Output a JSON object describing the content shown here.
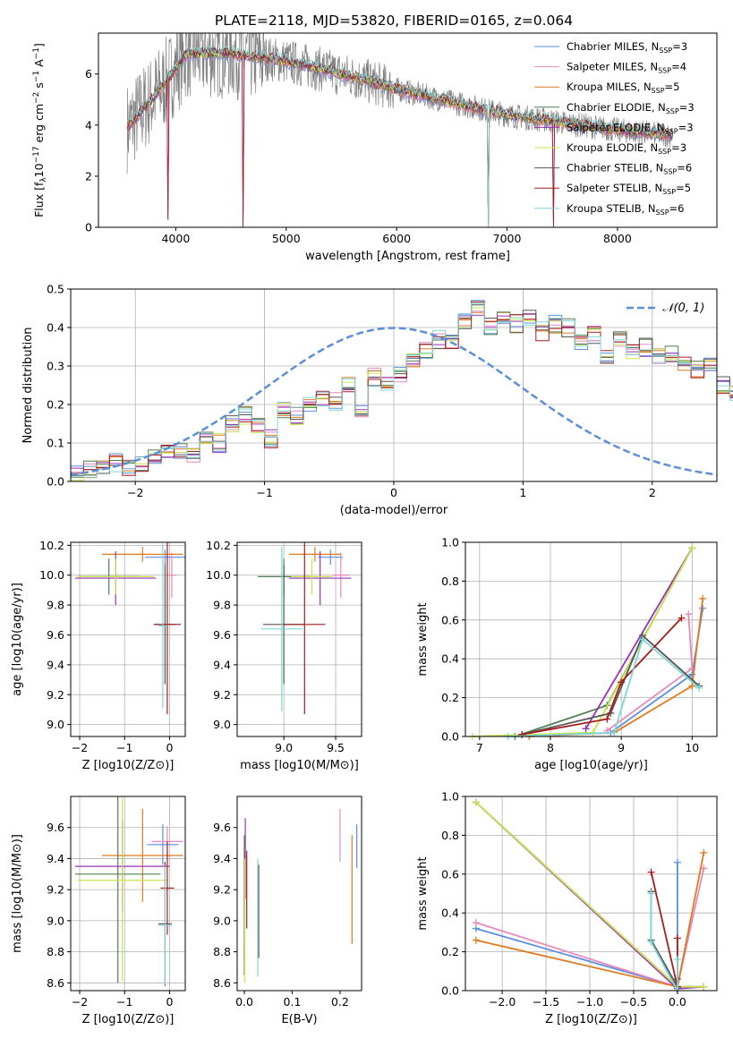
{
  "figure": {
    "title": "PLATE=2118, MJD=53820, FIBERID=0165, z=0.064"
  },
  "colors": {
    "Chabrier MILES": "#5a8ee0",
    "Salpeter MILES": "#e889bd",
    "Kroupa MILES": "#e07a1f",
    "Chabrier ELODIE": "#4f7f4f",
    "Salpeter ELODIE": "#9b30b8",
    "Kroupa ELODIE": "#c8e64a",
    "Chabrier STELIB": "#555555",
    "Salpeter STELIB": "#a81c1c",
    "Kroupa STELIB": "#7fd6d8",
    "data": "#808080",
    "gauss": "#5b8fd8"
  },
  "legend": {
    "entries": [
      {
        "label": "Chabrier MILES, N",
        "sub": "SSP",
        "suffix": "=3",
        "key": "Chabrier MILES"
      },
      {
        "label": "Salpeter MILES, N",
        "sub": "SSP",
        "suffix": "=4",
        "key": "Salpeter MILES"
      },
      {
        "label": "Kroupa MILES, N",
        "sub": "SSP",
        "suffix": "=5",
        "key": "Kroupa MILES"
      },
      {
        "label": "Chabrier ELODIE, N",
        "sub": "SSP",
        "suffix": "=3",
        "key": "Chabrier ELODIE"
      },
      {
        "label": "Salpeter ELODIE, N",
        "sub": "SSP",
        "suffix": "=3",
        "key": "Salpeter ELODIE"
      },
      {
        "label": "Kroupa ELODIE, N",
        "sub": "SSP",
        "suffix": "=3",
        "key": "Kroupa ELODIE"
      },
      {
        "label": "Chabrier STELIB, N",
        "sub": "SSP",
        "suffix": "=6",
        "key": "Chabrier STELIB"
      },
      {
        "label": "Salpeter STELIB, N",
        "sub": "SSP",
        "suffix": "=5",
        "key": "Salpeter STELIB"
      },
      {
        "label": "Kroupa STELIB, N",
        "sub": "SSP",
        "suffix": "=6",
        "key": "Kroupa STELIB"
      }
    ],
    "gauss_label": "𝒩(0, 1)"
  },
  "chart_data": [
    {
      "id": "spectrum",
      "type": "line",
      "xlabel": "wavelength [Angstrom, rest frame]",
      "ylabel_parts": [
        "Flux [f",
        "λ",
        "10",
        "−17",
        " erg cm",
        "−2",
        " s",
        "−1",
        " A",
        "−1",
        "]"
      ],
      "xlim": [
        3300,
        8900
      ],
      "ylim": [
        0,
        7.6
      ],
      "xticks": [
        4000,
        5000,
        6000,
        7000,
        8000
      ],
      "yticks": [
        0,
        2,
        4,
        6
      ],
      "continuum": {
        "x": [
          3560,
          3700,
          3900,
          4100,
          4500,
          5000,
          5500,
          6000,
          6500,
          7000,
          7500,
          8000,
          8500
        ],
        "y": [
          3.9,
          4.6,
          5.6,
          6.8,
          6.8,
          6.5,
          6.0,
          5.4,
          4.9,
          4.4,
          4.1,
          3.8,
          3.6
        ]
      },
      "model_dips": [
        [
          4610,
          0.0
        ],
        [
          3930,
          0.3
        ],
        [
          6830,
          0.0
        ],
        [
          7420,
          0.0
        ]
      ],
      "grid": false
    },
    {
      "id": "residuals",
      "type": "histogram",
      "xlabel": "(data-model)/error",
      "ylabel": "Normed distribution",
      "xlim": [
        -2.5,
        2.5
      ],
      "ylim": [
        0,
        0.5
      ],
      "xticks": [
        -2,
        -1,
        0,
        1,
        2
      ],
      "yticks": [
        0.0,
        0.1,
        0.2,
        0.3,
        0.4,
        0.5
      ],
      "bin_width": 0.1,
      "bin_start": -2.5,
      "base_heights": [
        0.02,
        0.03,
        0.04,
        0.05,
        0.04,
        0.05,
        0.06,
        0.07,
        0.08,
        0.07,
        0.11,
        0.1,
        0.15,
        0.17,
        0.14,
        0.11,
        0.18,
        0.17,
        0.2,
        0.22,
        0.21,
        0.25,
        0.19,
        0.27,
        0.26,
        0.28,
        0.31,
        0.34,
        0.37,
        0.36,
        0.42,
        0.45,
        0.4,
        0.43,
        0.41,
        0.42,
        0.39,
        0.41,
        0.4,
        0.36,
        0.38,
        0.33,
        0.37,
        0.34,
        0.35,
        0.32,
        0.33,
        0.31,
        0.29,
        0.3,
        0.25,
        0.23,
        0.2,
        0.19,
        0.17,
        0.15,
        0.13,
        0.11,
        0.1,
        0.09,
        0.08,
        0.07,
        0.06,
        0.05,
        0.05,
        0.04,
        0.03,
        0.03,
        0.03,
        0.02
      ],
      "grid": true
    },
    {
      "id": "age_vs_Z",
      "type": "scatter",
      "xlabel": "Z [log10(Z/Z⊙)]",
      "ylabel": "age  [log10(age/yr)]",
      "xlim": [
        -2.2,
        0.35
      ],
      "ylim": [
        8.92,
        10.22
      ],
      "xticks": [
        -2,
        -1,
        0
      ],
      "yticks": [
        9.0,
        9.2,
        9.4,
        9.6,
        9.8,
        10.0,
        10.2
      ],
      "points": [
        {
          "key": "Chabrier MILES",
          "x": -0.1,
          "y": 10.12,
          "xerr": 0.45,
          "yerr": 0.05
        },
        {
          "key": "Salpeter MILES",
          "x": 0.05,
          "y": 10.0,
          "xerr": 0.1,
          "yerr": 0.15
        },
        {
          "key": "Kroupa MILES",
          "x": -0.6,
          "y": 10.14,
          "xerr": 0.9,
          "yerr": 0.05
        },
        {
          "key": "Chabrier ELODIE",
          "x": -1.35,
          "y": 9.99,
          "xerr": 0.7,
          "yerr": 0.12
        },
        {
          "key": "Salpeter ELODIE",
          "x": -1.2,
          "y": 9.98,
          "xerr": 0.9,
          "yerr": 0.18
        },
        {
          "key": "Kroupa ELODIE",
          "x": -1.2,
          "y": 9.99,
          "xerr": 0.85,
          "yerr": 0.12
        },
        {
          "key": "Chabrier STELIB",
          "x": -0.1,
          "y": 9.67,
          "xerr": 0.25,
          "yerr": 0.4
        },
        {
          "key": "Salpeter STELIB",
          "x": -0.05,
          "y": 9.67,
          "xerr": 0.3,
          "yerr": 0.6
        },
        {
          "key": "Kroupa STELIB",
          "x": -0.15,
          "y": 9.66,
          "xerr": 0.1,
          "yerr": 0.55
        }
      ],
      "grid": true
    },
    {
      "id": "age_vs_mass",
      "type": "scatter",
      "xlabel": "mass [log10(M/M⊙)]",
      "ylabel": "",
      "xlim": [
        8.55,
        9.75
      ],
      "ylim": [
        8.92,
        10.22
      ],
      "xticks": [
        9.0,
        9.5
      ],
      "yticks": [
        9.0,
        9.2,
        9.4,
        9.6,
        9.8,
        10.0,
        10.2
      ],
      "points": [
        {
          "key": "Chabrier MILES",
          "x": 9.45,
          "y": 10.12,
          "xerr": 0.12,
          "yerr": 0.05
        },
        {
          "key": "Salpeter MILES",
          "x": 9.55,
          "y": 10.0,
          "xerr": 0.08,
          "yerr": 0.15
        },
        {
          "key": "Kroupa MILES",
          "x": 9.3,
          "y": 10.14,
          "xerr": 0.25,
          "yerr": 0.05
        },
        {
          "key": "Chabrier ELODIE",
          "x": 9.0,
          "y": 9.99,
          "xerr": 0.25,
          "yerr": 0.12
        },
        {
          "key": "Salpeter ELODIE",
          "x": 9.35,
          "y": 9.98,
          "xerr": 0.3,
          "yerr": 0.18
        },
        {
          "key": "Kroupa ELODIE",
          "x": 9.27,
          "y": 9.99,
          "xerr": 0.2,
          "yerr": 0.12
        },
        {
          "key": "Chabrier STELIB",
          "x": 9.0,
          "y": 9.67,
          "xerr": 0.2,
          "yerr": 0.4
        },
        {
          "key": "Salpeter STELIB",
          "x": 9.2,
          "y": 9.67,
          "xerr": 0.2,
          "yerr": 0.6
        },
        {
          "key": "Kroupa STELIB",
          "x": 8.98,
          "y": 9.64,
          "xerr": 0.2,
          "yerr": 0.55
        }
      ],
      "grid": true
    },
    {
      "id": "weight_vs_age",
      "type": "line",
      "xlabel": "age  [log10(age/yr)]",
      "ylabel": "mass weight",
      "xlim": [
        6.8,
        10.35
      ],
      "ylim": [
        0,
        1.0
      ],
      "xticks": [
        7,
        8,
        9,
        10
      ],
      "yticks": [
        0.0,
        0.2,
        0.4,
        0.6,
        0.8,
        1.0
      ],
      "series": [
        {
          "key": "Chabrier MILES",
          "x": [
            8.85,
            10.0,
            10.15
          ],
          "y": [
            0.02,
            0.32,
            0.66
          ]
        },
        {
          "key": "Salpeter MILES",
          "x": [
            8.8,
            10.0,
            9.95
          ],
          "y": [
            0.03,
            0.35,
            0.63
          ]
        },
        {
          "key": "Kroupa MILES",
          "x": [
            7.7,
            8.9,
            10.0,
            10.15
          ],
          "y": [
            0.0,
            0.02,
            0.26,
            0.71
          ]
        },
        {
          "key": "Chabrier ELODIE",
          "x": [
            7.5,
            8.8,
            10.0
          ],
          "y": [
            0.0,
            0.16,
            0.97
          ]
        },
        {
          "key": "Salpeter ELODIE",
          "x": [
            8.5,
            10.0
          ],
          "y": [
            0.04,
            0.97
          ]
        },
        {
          "key": "Kroupa ELODIE",
          "x": [
            6.9,
            8.6,
            10.0
          ],
          "y": [
            0.0,
            0.02,
            0.97
          ]
        },
        {
          "key": "Chabrier STELIB",
          "x": [
            7.6,
            8.85,
            9.3,
            10.1
          ],
          "y": [
            0.01,
            0.12,
            0.52,
            0.26
          ]
        },
        {
          "key": "Salpeter STELIB",
          "x": [
            7.6,
            8.8,
            9.0,
            9.85
          ],
          "y": [
            0.01,
            0.09,
            0.28,
            0.61
          ]
        },
        {
          "key": "Kroupa STELIB",
          "x": [
            7.4,
            8.9,
            9.3,
            10.1
          ],
          "y": [
            0.0,
            0.02,
            0.5,
            0.25
          ]
        }
      ],
      "grid": true
    },
    {
      "id": "mass_vs_Z",
      "type": "scatter",
      "xlabel": "Z [log10(Z/Z⊙)]",
      "ylabel": "mass [log10(M/M⊙)]",
      "xlim": [
        -2.2,
        0.35
      ],
      "ylim": [
        8.55,
        9.8
      ],
      "xticks": [
        -2,
        -1,
        0
      ],
      "yticks": [
        8.6,
        8.8,
        9.0,
        9.2,
        9.4,
        9.6
      ],
      "points": [
        {
          "key": "Chabrier MILES",
          "x": -0.15,
          "y": 9.49,
          "xerr": 0.35,
          "yerr": 0.13
        },
        {
          "key": "Salpeter MILES",
          "x": -0.05,
          "y": 9.51,
          "xerr": 0.35,
          "yerr": 0.1
        },
        {
          "key": "Kroupa MILES",
          "x": -0.6,
          "y": 9.42,
          "xerr": 0.9,
          "yerr": 0.3
        },
        {
          "key": "Chabrier ELODIE",
          "x": -1.15,
          "y": 9.3,
          "xerr": 0.95,
          "yerr": 0.7
        },
        {
          "key": "Salpeter ELODIE",
          "x": -1.05,
          "y": 9.35,
          "xerr": 1.05,
          "yerr": 0.3
        },
        {
          "key": "Kroupa ELODIE",
          "x": -1.05,
          "y": 9.26,
          "xerr": 1.0,
          "yerr": 0.65
        },
        {
          "key": "Chabrier STELIB",
          "x": -0.1,
          "y": 8.98,
          "xerr": 0.15,
          "yerr": 0.4
        },
        {
          "key": "Salpeter STELIB",
          "x": -0.05,
          "y": 9.21,
          "xerr": 0.15,
          "yerr": 0.3
        },
        {
          "key": "Kroupa STELIB",
          "x": -0.1,
          "y": 8.97,
          "xerr": 0.15,
          "yerr": 0.38
        }
      ],
      "grid": true
    },
    {
      "id": "mass_vs_EBV",
      "type": "scatter",
      "xlabel": "E(B-V)",
      "ylabel": "",
      "xlim": [
        -0.015,
        0.245
      ],
      "ylim": [
        8.55,
        9.8
      ],
      "xticks": [
        0.0,
        0.1,
        0.2
      ],
      "yticks": [
        8.6,
        8.8,
        9.0,
        9.2,
        9.4,
        9.6
      ],
      "points": [
        {
          "key": "Chabrier MILES",
          "x": 0.235,
          "y": 9.48,
          "yerr": 0.14
        },
        {
          "key": "Salpeter MILES",
          "x": 0.2,
          "y": 9.55,
          "yerr": 0.17
        },
        {
          "key": "Kroupa MILES",
          "x": 0.225,
          "y": 9.2,
          "yerr": 0.35
        },
        {
          "key": "Chabrier ELODIE",
          "x": 0.0,
          "y": 9.1,
          "yerr": 0.45
        },
        {
          "key": "Salpeter ELODIE",
          "x": 0.002,
          "y": 9.4,
          "yerr": 0.26
        },
        {
          "key": "Kroupa ELODIE",
          "x": 0.001,
          "y": 9.0,
          "yerr": 0.4
        },
        {
          "key": "Chabrier STELIB",
          "x": 0.03,
          "y": 9.06,
          "yerr": 0.3
        },
        {
          "key": "Salpeter STELIB",
          "x": 0.005,
          "y": 9.2,
          "yerr": 0.25
        },
        {
          "key": "Kroupa STELIB",
          "x": 0.028,
          "y": 9.02,
          "yerr": 0.38
        }
      ],
      "grid": false
    },
    {
      "id": "weight_vs_Z",
      "type": "line",
      "xlabel": "Z [log10(Z/Z⊙)]",
      "ylabel": "mass weight",
      "xlim": [
        -2.42,
        0.45
      ],
      "ylim": [
        0,
        1.0
      ],
      "xticks": [
        -2.0,
        -1.5,
        -1.0,
        -0.5,
        0.0
      ],
      "yticks": [
        0.0,
        0.2,
        0.4,
        0.6,
        0.8,
        1.0
      ],
      "series": [
        {
          "key": "Chabrier MILES",
          "x": [
            -2.3,
            0.0,
            0.0
          ],
          "y": [
            0.32,
            0.02,
            0.66
          ]
        },
        {
          "key": "Salpeter MILES",
          "x": [
            -2.3,
            0.0,
            0.3
          ],
          "y": [
            0.35,
            0.02,
            0.63
          ]
        },
        {
          "key": "Kroupa MILES",
          "x": [
            -2.3,
            0.0,
            0.3
          ],
          "y": [
            0.26,
            0.02,
            0.71
          ]
        },
        {
          "key": "Chabrier ELODIE",
          "x": [
            -2.3,
            0.0,
            0.3
          ],
          "y": [
            0.97,
            0.02,
            0.02
          ]
        },
        {
          "key": "Salpeter ELODIE",
          "x": [
            -2.3,
            0.0,
            0.3
          ],
          "y": [
            0.97,
            0.01,
            0.02
          ]
        },
        {
          "key": "Kroupa ELODIE",
          "x": [
            -2.3,
            0.0,
            0.3
          ],
          "y": [
            0.97,
            0.02,
            0.02
          ]
        },
        {
          "key": "Chabrier STELIB",
          "x": [
            -0.3,
            -0.3,
            0.0,
            0.0
          ],
          "y": [
            0.51,
            0.26,
            0.02,
            0.06
          ]
        },
        {
          "key": "Salpeter STELIB",
          "x": [
            -0.3,
            0.0,
            0.0
          ],
          "y": [
            0.61,
            0.02,
            0.27
          ]
        },
        {
          "key": "Kroupa STELIB",
          "x": [
            -0.3,
            -0.3,
            0.0,
            0.0
          ],
          "y": [
            0.5,
            0.25,
            0.0,
            0.16
          ]
        }
      ],
      "grid": true
    }
  ]
}
